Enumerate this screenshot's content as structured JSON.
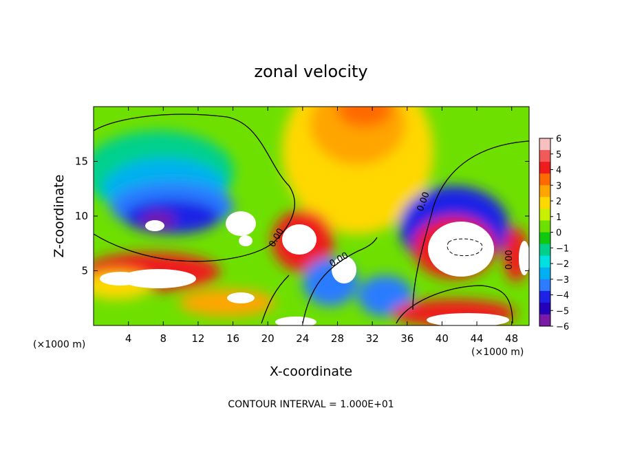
{
  "chart_data": {
    "type": "heatmap",
    "title": "zonal velocity",
    "xlabel": "X-coordinate",
    "ylabel": "Z-coordinate",
    "x_unit": "(×1000 m)",
    "y_unit": "(×1000 m)",
    "xlim": [
      0,
      50
    ],
    "ylim": [
      0,
      20
    ],
    "x_ticks": [
      "4",
      "8",
      "12",
      "16",
      "20",
      "24",
      "28",
      "32",
      "36",
      "40",
      "44",
      "48"
    ],
    "y_ticks": [
      "5",
      "10",
      "15"
    ],
    "footer": "CONTOUR INTERVAL = 1.000E+01",
    "contour_labels": [
      "0.00",
      "0.00",
      "0.00",
      "0.00"
    ],
    "colorbar": {
      "ticks": [
        "6",
        "5",
        "4",
        "3",
        "2",
        "1",
        "0",
        "−1",
        "−2",
        "−3",
        "−4",
        "−5",
        "−6"
      ],
      "range": [
        -6,
        6
      ],
      "colors": [
        "#f6c0c0",
        "#f25a5a",
        "#ee1c1c",
        "#ff6a00",
        "#ffa500",
        "#ffd800",
        "#c8ee00",
        "#6ee000",
        "#10c810",
        "#00d08c",
        "#00e0e0",
        "#00b0f0",
        "#2c7cff",
        "#1e22e6",
        "#2400b8",
        "#7a1aa6"
      ]
    }
  }
}
